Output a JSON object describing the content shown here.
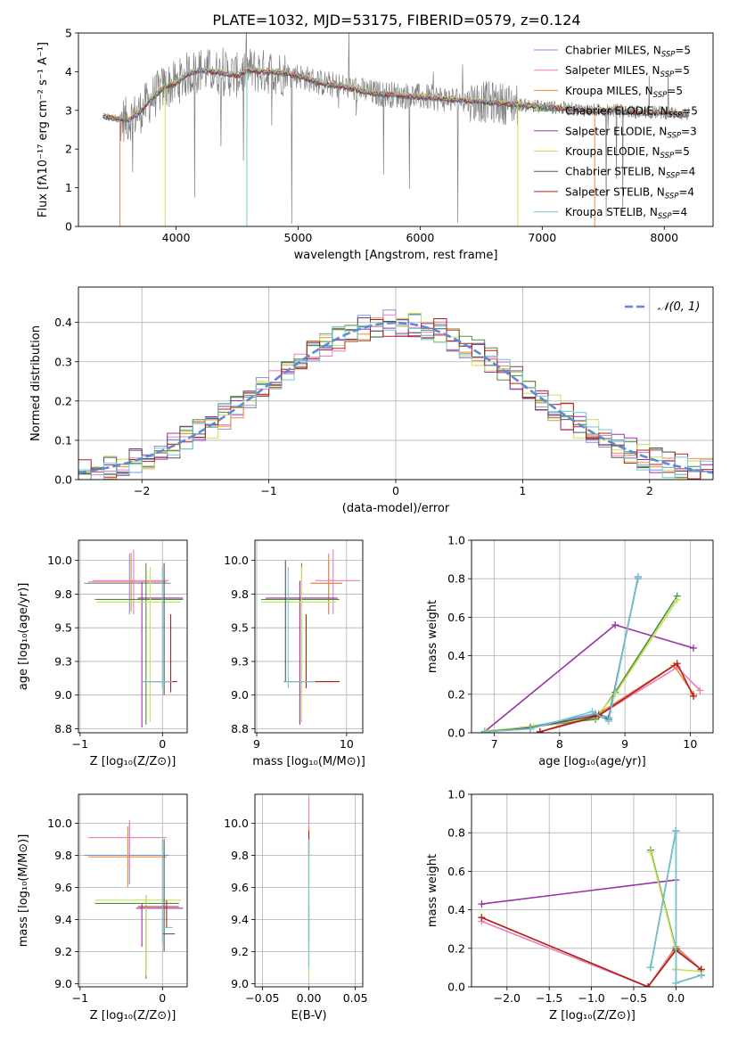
{
  "figure": {
    "title": "PLATE=1032, MJD=53175, FIBERID=0579, z=0.124"
  },
  "colors": {
    "series": [
      "#7b93dc",
      "#e87fbf",
      "#f08a3a",
      "#4a8f3a",
      "#9b30a8",
      "#c8e05a",
      "#555555",
      "#b02020",
      "#72c8cf"
    ],
    "data_spectrum": "#808080",
    "normal_curve": "#5b8bd3"
  },
  "chart_data": [
    {
      "id": "spectrum",
      "type": "line",
      "xlabel": "wavelength [Angstrom, rest frame]",
      "ylabel": "Flux [fλ10⁻¹⁷ erg cm⁻² s⁻¹ A⁻¹]",
      "xlim": [
        3200,
        8400
      ],
      "ylim": [
        0,
        5
      ],
      "xticks": [
        4000,
        5000,
        6000,
        7000,
        8000
      ],
      "yticks": [
        0,
        1,
        2,
        3,
        4,
        5
      ],
      "grid": false,
      "legend": "top-right",
      "legend_entries": [
        {
          "base": "Chabrier MILES, N",
          "sub": "SSP",
          "tail": "=5"
        },
        {
          "base": "Salpeter MILES, N",
          "sub": "SSP",
          "tail": "=5"
        },
        {
          "base": "Kroupa MILES, N",
          "sub": "SSP",
          "tail": "=5"
        },
        {
          "base": "Chabrier ELODIE, N",
          "sub": "SSP",
          "tail": "=5"
        },
        {
          "base": "Salpeter ELODIE, N",
          "sub": "SSP",
          "tail": "=3"
        },
        {
          "base": "Kroupa ELODIE, N",
          "sub": "SSP",
          "tail": "=5"
        },
        {
          "base": "Chabrier STELIB, N",
          "sub": "SSP",
          "tail": "=4"
        },
        {
          "base": "Salpeter STELIB, N",
          "sub": "SSP",
          "tail": "=4"
        },
        {
          "base": "Kroupa STELIB, N",
          "sub": "SSP",
          "tail": "=4"
        }
      ],
      "continuum": {
        "x": [
          3400,
          3500,
          3600,
          3700,
          3800,
          3900,
          4000,
          4100,
          4200,
          4300,
          4400,
          4500,
          4600,
          4700,
          4800,
          4900,
          5000,
          5200,
          5400,
          5600,
          5800,
          6000,
          6200,
          6400,
          6600,
          6800,
          7000,
          7200,
          7400,
          7600,
          7800,
          8000,
          8200
        ],
        "y": [
          2.85,
          2.8,
          2.75,
          2.95,
          3.3,
          3.6,
          3.7,
          3.95,
          4.05,
          4.0,
          3.95,
          3.9,
          4.05,
          4.0,
          4.0,
          3.95,
          3.9,
          3.7,
          3.6,
          3.45,
          3.4,
          3.35,
          3.3,
          3.25,
          3.2,
          3.15,
          3.1,
          3.05,
          3.0,
          3.0,
          2.95,
          2.95,
          2.9
        ]
      },
      "drops": [
        {
          "x": 3540,
          "series": 2
        },
        {
          "x": 3910,
          "series": 5
        },
        {
          "x": 4580,
          "series": 8
        },
        {
          "x": 6800,
          "series": 5
        },
        {
          "x": 7430,
          "series": 2
        }
      ]
    },
    {
      "id": "residuals",
      "type": "line",
      "xlabel": "(data-model)/error",
      "ylabel": "Normed distribution",
      "xlim": [
        -2.5,
        2.5
      ],
      "ylim": [
        0,
        0.49
      ],
      "xticks": [
        -2,
        -1,
        0,
        1,
        2
      ],
      "yticks": [
        0.0,
        0.1,
        0.2,
        0.3,
        0.4
      ],
      "grid": true,
      "legend": "top-right",
      "legend_label": "𝒩(0, 1)",
      "hist_bin_width": 0.1
    },
    {
      "id": "age-vs-Z",
      "type": "scatter",
      "xlabel": "Z [log₁₀(Z/Z⊙)]",
      "ylabel": "age  [log₁₀(age/yr)]",
      "xlim": [
        -1.02,
        0.3
      ],
      "ylim": [
        8.72,
        10.15
      ],
      "xticks": [
        -1,
        0
      ],
      "yticks": [
        8.75,
        9.0,
        9.25,
        9.5,
        9.75,
        10.0
      ],
      "grid": true,
      "points": [
        {
          "s": 0,
          "x": -0.4,
          "y": 9.83,
          "ex": [
            -0.95,
            0.1
          ],
          "ey": [
            9.6,
            10.05
          ]
        },
        {
          "s": 1,
          "x": -0.35,
          "y": 9.85,
          "ex": [
            -0.85,
            0.08
          ],
          "ey": [
            9.6,
            10.08
          ]
        },
        {
          "s": 2,
          "x": -0.38,
          "y": 9.84,
          "ex": [
            -0.9,
            0.05
          ],
          "ey": [
            9.62,
            10.06
          ]
        },
        {
          "s": 3,
          "x": -0.2,
          "y": 9.71,
          "ex": [
            -0.82,
            0.25
          ],
          "ey": [
            8.78,
            9.98
          ]
        },
        {
          "s": 4,
          "x": -0.25,
          "y": 9.72,
          "ex": [
            -0.3,
            0.25
          ],
          "ey": [
            8.76,
            9.84
          ]
        },
        {
          "s": 5,
          "x": -0.15,
          "y": 9.69,
          "ex": [
            -0.8,
            0.22
          ],
          "ey": [
            8.8,
            9.95
          ]
        },
        {
          "s": 6,
          "x": 0.02,
          "y": 9.1,
          "ex": [
            -0.25,
            0.15
          ],
          "ey": [
            9.0,
            9.98
          ]
        },
        {
          "s": 7,
          "x": 0.1,
          "y": 9.1,
          "ex": [
            -0.2,
            0.18
          ],
          "ey": [
            9.02,
            9.6
          ]
        },
        {
          "s": 8,
          "x": 0.0,
          "y": 9.1,
          "ex": [
            -0.25,
            0.12
          ],
          "ey": [
            9.05,
            9.95
          ]
        }
      ]
    },
    {
      "id": "age-vs-mass",
      "type": "scatter",
      "xlabel": "mass [log₁₀(M/M⊙)]",
      "ylabel": "",
      "xlim": [
        8.98,
        10.18
      ],
      "ylim": [
        8.72,
        10.15
      ],
      "xticks": [
        9,
        10
      ],
      "yticks": [
        8.75,
        9.0,
        9.25,
        9.5,
        9.75,
        10.0
      ],
      "grid": true,
      "points": [
        {
          "s": 0,
          "x": 9.8,
          "y": 9.83,
          "ex": [
            9.6,
            9.95
          ],
          "ey": [
            9.6,
            10.0
          ]
        },
        {
          "s": 1,
          "x": 9.85,
          "y": 9.85,
          "ex": [
            9.65,
            10.15
          ],
          "ey": [
            9.6,
            10.08
          ]
        },
        {
          "s": 2,
          "x": 9.8,
          "y": 9.83,
          "ex": [
            9.6,
            9.95
          ],
          "ey": [
            9.6,
            10.05
          ]
        },
        {
          "s": 3,
          "x": 9.5,
          "y": 9.71,
          "ex": [
            9.05,
            9.92
          ],
          "ey": [
            8.8,
            9.98
          ]
        },
        {
          "s": 4,
          "x": 9.48,
          "y": 9.72,
          "ex": [
            9.1,
            9.9
          ],
          "ey": [
            8.78,
            9.85
          ]
        },
        {
          "s": 5,
          "x": 9.5,
          "y": 9.69,
          "ex": [
            9.05,
            9.88
          ],
          "ey": [
            8.8,
            9.95
          ]
        },
        {
          "s": 6,
          "x": 9.32,
          "y": 9.1,
          "ex": [
            9.3,
            9.92
          ],
          "ey": [
            9.1,
            10.0
          ]
        },
        {
          "s": 7,
          "x": 9.55,
          "y": 9.1,
          "ex": [
            9.3,
            9.92
          ],
          "ey": [
            9.05,
            9.6
          ]
        },
        {
          "s": 8,
          "x": 9.35,
          "y": 9.1,
          "ex": [
            9.3,
            9.65
          ],
          "ey": [
            9.05,
            9.95
          ]
        }
      ]
    },
    {
      "id": "weight-vs-age",
      "type": "line",
      "xlabel": "age  [log₁₀(age/yr)]",
      "ylabel": "mass weight",
      "xlim": [
        6.65,
        10.35
      ],
      "ylim": [
        0,
        1.0
      ],
      "xticks": [
        7,
        8,
        9,
        10
      ],
      "yticks": [
        0.0,
        0.2,
        0.4,
        0.6,
        0.8,
        1.0
      ],
      "grid": true,
      "series": [
        {
          "s": 0,
          "x": [
            6.85,
            7.55,
            8.55,
            8.75,
            9.2
          ],
          "y": [
            0.005,
            0.03,
            0.1,
            0.08,
            0.8
          ]
        },
        {
          "s": 1,
          "x": [
            7.7,
            8.55,
            9.8,
            10.15
          ],
          "y": [
            0.005,
            0.08,
            0.34,
            0.22
          ]
        },
        {
          "s": 2,
          "x": [
            7.7,
            8.6,
            9.75,
            10.05
          ],
          "y": [
            0.005,
            0.1,
            0.35,
            0.2
          ]
        },
        {
          "s": 3,
          "x": [
            6.85,
            8.55,
            8.85,
            9.8
          ],
          "y": [
            0.005,
            0.07,
            0.21,
            0.71
          ]
        },
        {
          "s": 4,
          "x": [
            6.85,
            8.85,
            10.05
          ],
          "y": [
            0.005,
            0.56,
            0.44
          ]
        },
        {
          "s": 5,
          "x": [
            6.85,
            7.6,
            8.55,
            8.85,
            9.8
          ],
          "y": [
            0.01,
            0.03,
            0.08,
            0.2,
            0.69
          ]
        },
        {
          "s": 6,
          "x": [
            6.85,
            7.55,
            8.55,
            8.75,
            9.2
          ],
          "y": [
            0.005,
            0.025,
            0.09,
            0.07,
            0.81
          ]
        },
        {
          "s": 7,
          "x": [
            7.7,
            8.6,
            9.8,
            10.05
          ],
          "y": [
            0.005,
            0.09,
            0.36,
            0.19
          ]
        },
        {
          "s": 8,
          "x": [
            6.85,
            7.55,
            8.5,
            8.75,
            9.2
          ],
          "y": [
            0.005,
            0.02,
            0.11,
            0.06,
            0.81
          ]
        }
      ]
    },
    {
      "id": "mass-vs-Z",
      "type": "scatter",
      "xlabel": "Z [log₁₀(Z/Z⊙)]",
      "ylabel": "mass [log₁₀(M/M⊙)]",
      "xlim": [
        -1.02,
        0.3
      ],
      "ylim": [
        8.98,
        10.18
      ],
      "xticks": [
        -1,
        0
      ],
      "yticks": [
        9.0,
        9.2,
        9.4,
        9.6,
        9.8,
        10.0
      ],
      "grid": true,
      "points": [
        {
          "s": 0,
          "x": -0.4,
          "y": 9.8,
          "ex": [
            -0.95,
            0.08
          ],
          "ey": [
            9.62,
            10.0
          ]
        },
        {
          "s": 1,
          "x": -0.4,
          "y": 9.91,
          "ex": [
            -0.9,
            0.05
          ],
          "ey": [
            9.7,
            10.02
          ]
        },
        {
          "s": 2,
          "x": -0.42,
          "y": 9.79,
          "ex": [
            -0.9,
            0.05
          ],
          "ey": [
            9.6,
            9.98
          ]
        },
        {
          "s": 3,
          "x": -0.2,
          "y": 9.5,
          "ex": [
            -0.82,
            0.2
          ],
          "ey": [
            9.03,
            9.55
          ]
        },
        {
          "s": 4,
          "x": -0.25,
          "y": 9.47,
          "ex": [
            -0.32,
            0.25
          ],
          "ey": [
            9.23,
            9.5
          ]
        },
        {
          "s": 5,
          "x": -0.2,
          "y": 9.52,
          "ex": [
            -0.82,
            0.22
          ],
          "ey": [
            9.05,
            9.55
          ]
        },
        {
          "s": 6,
          "x": 0.02,
          "y": 9.31,
          "ex": [
            0.0,
            0.15
          ],
          "ey": [
            9.2,
            9.9
          ]
        },
        {
          "s": 7,
          "x": 0.05,
          "y": 9.48,
          "ex": [
            -0.3,
            0.2
          ],
          "ey": [
            9.35,
            9.52
          ]
        },
        {
          "s": 8,
          "x": 0.0,
          "y": 9.35,
          "ex": [
            0.0,
            0.12
          ],
          "ey": [
            9.25,
            9.9
          ]
        }
      ]
    },
    {
      "id": "mass-vs-EBV",
      "type": "scatter",
      "xlabel": "E(B-V)",
      "ylabel": "",
      "xlim": [
        -0.058,
        0.058
      ],
      "ylim": [
        8.98,
        10.18
      ],
      "xticks": [
        -0.05,
        0.0,
        0.05
      ],
      "xtick_labels": [
        "−0.05",
        "0.00",
        "0.05"
      ],
      "yticks": [
        9.0,
        9.2,
        9.4,
        9.6,
        9.8,
        10.0
      ],
      "grid": true,
      "points": [
        {
          "s": 0,
          "x": 0.0,
          "y": 9.8,
          "ey": [
            9.62,
            10.0
          ]
        },
        {
          "s": 1,
          "x": 0.0,
          "y": 9.91,
          "ey": [
            9.72,
            10.15
          ]
        },
        {
          "s": 2,
          "x": 0.0,
          "y": 9.79,
          "ey": [
            9.6,
            9.98
          ]
        },
        {
          "s": 3,
          "x": 0.0,
          "y": 9.5,
          "ey": [
            9.05,
            9.55
          ]
        },
        {
          "s": 4,
          "x": 0.0,
          "y": 9.47,
          "ey": [
            9.25,
            9.5
          ]
        },
        {
          "s": 5,
          "x": 0.0,
          "y": 9.32,
          "ey": [
            9.05,
            9.55
          ]
        },
        {
          "s": 6,
          "x": 0.0,
          "y": 9.3,
          "ey": [
            9.2,
            9.9
          ]
        },
        {
          "s": 7,
          "x": 0.0,
          "y": 9.85,
          "ey": [
            9.8,
            9.95
          ]
        },
        {
          "s": 8,
          "x": 0.0,
          "y": 9.35,
          "ey": [
            9.1,
            9.9
          ]
        }
      ]
    },
    {
      "id": "weight-vs-Z",
      "type": "line",
      "xlabel": "Z [log₁₀(Z/Z⊙)]",
      "ylabel": "mass weight",
      "xlim": [
        -2.42,
        0.44
      ],
      "ylim": [
        0,
        1.0
      ],
      "xticks": [
        -2.0,
        -1.5,
        -1.0,
        -0.5,
        0.0
      ],
      "xtick_labels": [
        "−2.0",
        "−1.5",
        "−1.0",
        "−0.5",
        "0.0"
      ],
      "yticks": [
        0.0,
        0.2,
        0.4,
        0.6,
        0.8,
        1.0
      ],
      "grid": true,
      "series": [
        {
          "s": 0,
          "x": [
            -0.3,
            0.0,
            0.0,
            0.3
          ],
          "y": [
            0.1,
            0.81,
            0.02,
            0.06
          ]
        },
        {
          "s": 1,
          "x": [
            -2.3,
            -0.33,
            0.0,
            0.3
          ],
          "y": [
            0.34,
            0.0,
            0.21,
            0.09
          ]
        },
        {
          "s": 2,
          "x": [
            -2.3,
            -0.33,
            0.0,
            0.3
          ],
          "y": [
            0.36,
            0.0,
            0.2,
            0.09
          ]
        },
        {
          "s": 3,
          "x": [
            -0.3,
            0.0,
            0.0
          ],
          "y": [
            0.71,
            0.2,
            0.09
          ]
        },
        {
          "s": 4,
          "x": [
            -2.3,
            0.0
          ],
          "y": [
            0.43,
            0.555
          ]
        },
        {
          "s": 5,
          "x": [
            -0.3,
            0.0,
            0.0,
            0.3
          ],
          "y": [
            0.7,
            0.19,
            0.09,
            0.08
          ]
        },
        {
          "s": 6,
          "x": [
            -0.3,
            0.0,
            0.0,
            0.3
          ],
          "y": [
            0.1,
            0.81,
            0.02,
            0.06
          ]
        },
        {
          "s": 7,
          "x": [
            -2.3,
            -0.33,
            0.0,
            0.3
          ],
          "y": [
            0.36,
            0.0,
            0.19,
            0.09
          ]
        },
        {
          "s": 8,
          "x": [
            -0.3,
            0.0,
            0.0,
            0.3
          ],
          "y": [
            0.1,
            0.81,
            0.02,
            0.06
          ]
        }
      ]
    }
  ]
}
